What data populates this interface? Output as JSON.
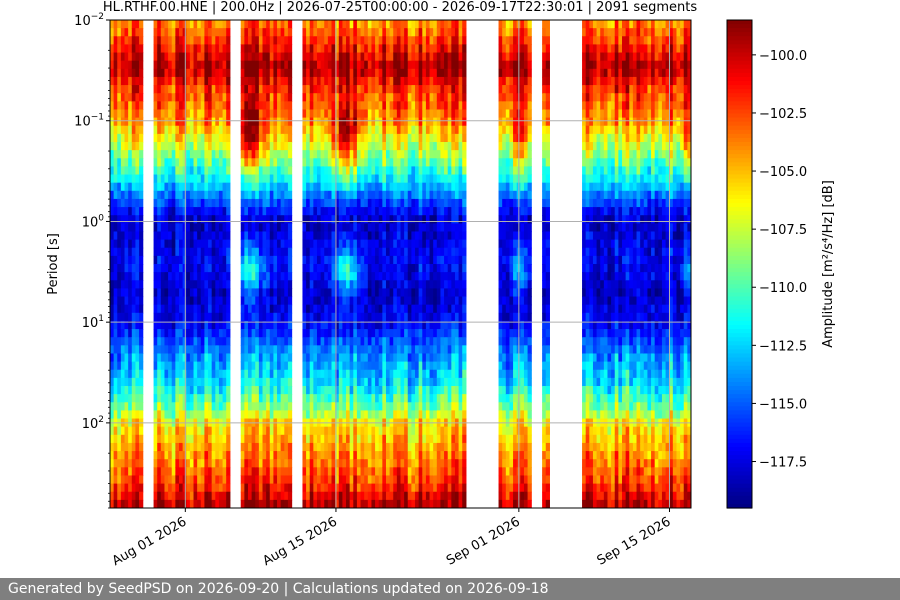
{
  "footer": {
    "text": "Generated by SeedPSD on 2026-09-20 | Calculations updated on 2026-09-18"
  },
  "chart_data": {
    "type": "heatmap",
    "title": "HL.RTHF.00.HNE | 200.0Hz | 2026-07-25T00:00:00 - 2026-09-17T22:30:01 | 2091 segments",
    "xlabel": "",
    "ylabel": "Period [s]",
    "colorbar_label": "Amplitude [m²/s⁴/Hz] [dB]",
    "colormap": "jet",
    "y_scale": "log",
    "y_inverted": true,
    "xlim": [
      "2026-07-25",
      "2026-09-17"
    ],
    "ylim_period_s": [
      0.01,
      700
    ],
    "clim_db": [
      -119.5,
      -98.5
    ],
    "grid": true,
    "x_ticks": [
      {
        "date": "2026-08-01",
        "label": "Aug 01 2026"
      },
      {
        "date": "2026-08-15",
        "label": "Aug 15 2026"
      },
      {
        "date": "2026-09-01",
        "label": "Sep 01 2026"
      },
      {
        "date": "2026-09-15",
        "label": "Sep 15 2026"
      }
    ],
    "y_ticks": [
      {
        "value": 0.01,
        "base": "10",
        "exp": "−2"
      },
      {
        "value": 0.1,
        "base": "10",
        "exp": "−1"
      },
      {
        "value": 1,
        "base": "10",
        "exp": "0"
      },
      {
        "value": 10,
        "base": "10",
        "exp": "1"
      },
      {
        "value": 100,
        "base": "10",
        "exp": "2"
      }
    ],
    "colorbar_ticks": [
      "−100.0",
      "−102.5",
      "−105.0",
      "−107.5",
      "−110.0",
      "−112.5",
      "−115.0",
      "−117.5"
    ],
    "colorbar_tick_values": [
      -100,
      -102.5,
      -105,
      -107.5,
      -110,
      -112.5,
      -115,
      -117.5
    ],
    "data_gaps": [
      [
        "2026-07-28",
        "2026-07-29"
      ],
      [
        "2026-08-05",
        "2026-08-06"
      ],
      [
        "2026-08-11",
        "2026-08-12"
      ],
      [
        "2026-08-27",
        "2026-08-30"
      ],
      [
        "2026-09-02",
        "2026-09-03"
      ],
      [
        "2026-09-04",
        "2026-09-07"
      ]
    ],
    "profile": {
      "period_s": [
        0.01,
        0.02,
        0.03,
        0.05,
        0.1,
        0.2,
        0.4,
        0.7,
        1,
        2,
        3,
        5,
        10,
        20,
        40,
        70,
        100,
        200,
        400,
        700
      ],
      "amplitude_db": [
        -104,
        -101,
        -99,
        -102,
        -104,
        -108,
        -112,
        -116,
        -118,
        -117,
        -117,
        -118,
        -117,
        -114,
        -112,
        -109,
        -106,
        -104,
        -102,
        -99
      ]
    }
  }
}
